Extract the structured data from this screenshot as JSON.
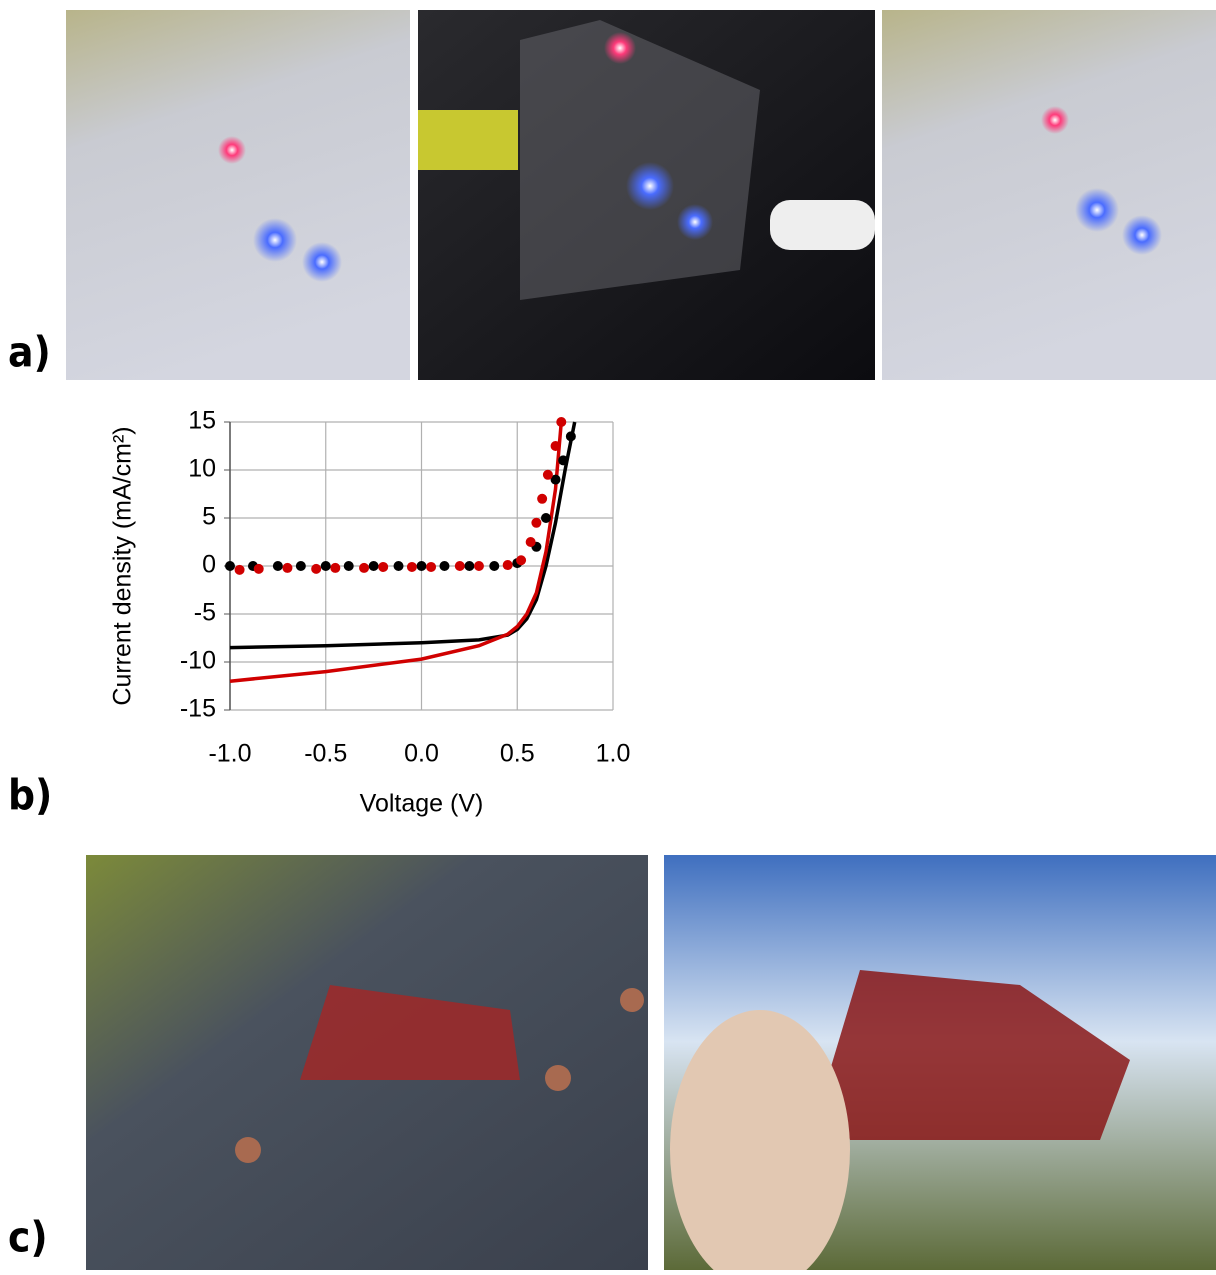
{
  "panel_labels": [
    "a)",
    "b)",
    "c)"
  ],
  "chart_data": {
    "type": "line",
    "xlabel": "Voltage (V)",
    "ylabel": "Current density (mA/cm²)",
    "xlim": [
      -1,
      1
    ],
    "ylim": [
      -15,
      15
    ],
    "xticks": [
      {
        "value": -1,
        "label": "-1.0"
      },
      {
        "value": -0.5,
        "label": "-0.5"
      },
      {
        "value": 0,
        "label": "0.0"
      },
      {
        "value": 0.5,
        "label": "0.5"
      },
      {
        "value": 1,
        "label": "1.0"
      }
    ],
    "yticks": [
      -15,
      -10,
      -5,
      0,
      5,
      10,
      15
    ],
    "grid": true,
    "series": [
      {
        "color": "#000000",
        "style": "line",
        "x": [
          -1,
          -0.5,
          0,
          0.3,
          0.45,
          0.5,
          0.55,
          0.6,
          0.65,
          0.7,
          0.75,
          0.8
        ],
        "values": [
          -8.5,
          -8.3,
          -8.0,
          -7.7,
          -7.2,
          -6.6,
          -5.5,
          -3.5,
          0,
          4.5,
          10,
          15
        ]
      },
      {
        "color": "#d00000",
        "style": "line",
        "x": [
          -1,
          -0.5,
          0,
          0.3,
          0.45,
          0.5,
          0.55,
          0.6,
          0.65,
          0.7,
          0.73
        ],
        "values": [
          -12,
          -11,
          -9.7,
          -8.3,
          -7.1,
          -6.3,
          -5.0,
          -2.8,
          1.5,
          8,
          15
        ]
      },
      {
        "color": "#000000",
        "style": "dots",
        "x": [
          -1,
          -0.88,
          -0.75,
          -0.63,
          -0.5,
          -0.38,
          -0.25,
          -0.12,
          0,
          0.12,
          0.25,
          0.38,
          0.5,
          0.6,
          0.65,
          0.7,
          0.74,
          0.78
        ],
        "values": [
          0,
          0,
          0,
          0,
          0,
          0,
          0,
          0,
          0,
          0,
          0,
          0,
          0.3,
          2,
          5,
          9,
          11,
          13.5
        ]
      },
      {
        "color": "#d00000",
        "style": "dots",
        "x": [
          -0.95,
          -0.85,
          -0.7,
          -0.55,
          -0.45,
          -0.3,
          -0.2,
          -0.05,
          0.05,
          0.2,
          0.3,
          0.45,
          0.52,
          0.57,
          0.6,
          0.63,
          0.66,
          0.7,
          0.73
        ],
        "values": [
          -0.4,
          -0.3,
          -0.2,
          -0.3,
          -0.2,
          -0.2,
          -0.1,
          -0.1,
          -0.1,
          0,
          0,
          0.1,
          0.6,
          2.5,
          4.5,
          7,
          9.5,
          12.5,
          15
        ]
      }
    ]
  }
}
